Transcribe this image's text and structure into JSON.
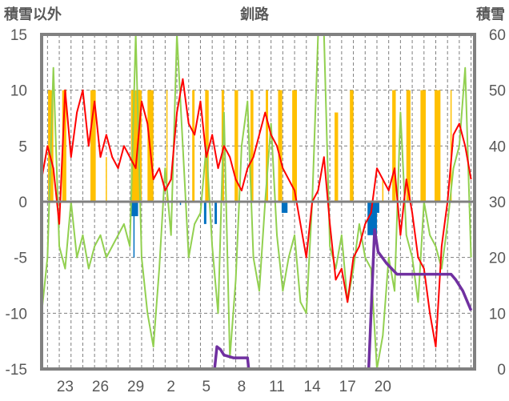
{
  "chart_data": {
    "type": "line",
    "title": "釧路",
    "ylabel_left": "積雪以外",
    "ylabel_right": "積雪",
    "ylim_left": [
      -15,
      15
    ],
    "ylim_right": [
      0,
      60
    ],
    "yticks_left": [
      "15",
      "10",
      "5",
      "0",
      "-5",
      "-10",
      "-15"
    ],
    "yticks_right": [
      "60",
      "50",
      "40",
      "30",
      "20",
      "10",
      "0"
    ],
    "xlim_days": [
      0,
      36.8
    ],
    "xticks": [
      {
        "t": 2,
        "label": "23"
      },
      {
        "t": 5,
        "label": "26"
      },
      {
        "t": 8,
        "label": "29"
      },
      {
        "t": 11,
        "label": "2"
      },
      {
        "t": 14,
        "label": "5"
      },
      {
        "t": 17,
        "label": "8"
      },
      {
        "t": 20,
        "label": "11"
      },
      {
        "t": 23,
        "label": "14"
      },
      {
        "t": 26,
        "label": "17"
      },
      {
        "t": 29,
        "label": "20"
      }
    ],
    "grid": true,
    "colors": {
      "red": "#ff0000",
      "green": "#92d050",
      "orange": "#ffc000",
      "blue": "#0070c0",
      "purple": "#7030a0",
      "frame": "#808080"
    },
    "series_red_step": 0.5,
    "series_red": [
      2,
      5,
      3,
      -2,
      10,
      4,
      8,
      10,
      5,
      9,
      4,
      6,
      4,
      3,
      5,
      4,
      3,
      9,
      7,
      2,
      3,
      1,
      2,
      8,
      11,
      7,
      6,
      9,
      4,
      6,
      3,
      5,
      4,
      2,
      1,
      3,
      4,
      6,
      8,
      6,
      5,
      3,
      2,
      1,
      -2,
      -5,
      0,
      1,
      4,
      -2,
      -7,
      -6,
      -9,
      -5,
      -4,
      -2,
      -1,
      3,
      2,
      1,
      3,
      -3,
      2,
      -1,
      -5,
      -6,
      -10,
      -13,
      -4,
      0,
      6,
      7,
      5,
      2
    ],
    "series_green_step": 0.5,
    "series_green": [
      -10,
      -5,
      12,
      -4,
      -6,
      0,
      -5,
      -3,
      -6,
      -4,
      -3,
      -5,
      -4,
      -3,
      -2,
      -4,
      15,
      -5,
      -10,
      -13,
      -6,
      3,
      -3,
      15,
      5,
      -5,
      -2,
      -1,
      5,
      -4,
      -10,
      8,
      -14,
      -7,
      5,
      9,
      -5,
      -8,
      0,
      7,
      -3,
      -8,
      -5,
      -3,
      -9,
      -10,
      0,
      15,
      15,
      -4,
      -6,
      -3,
      -9,
      -6,
      -2,
      -5,
      -6,
      -15,
      -12,
      -5,
      -8,
      8,
      -3,
      -5,
      -9,
      0,
      -3,
      -4,
      -6,
      -2,
      3,
      5,
      12,
      -5
    ],
    "bars_orange": [
      [
        0.55,
        1.0,
        10
      ],
      [
        1.75,
        2.1,
        10
      ],
      [
        4.15,
        4.6,
        10
      ],
      [
        5.45,
        5.55,
        4
      ],
      [
        7.6,
        8.5,
        10
      ],
      [
        9.0,
        9.5,
        10
      ],
      [
        10.6,
        10.7,
        10
      ],
      [
        12.8,
        13.0,
        10
      ],
      [
        13.9,
        14.2,
        10
      ],
      [
        15.3,
        15.5,
        10
      ],
      [
        16.4,
        16.7,
        10
      ],
      [
        17.75,
        18.0,
        10
      ],
      [
        19.05,
        19.25,
        10
      ],
      [
        20.1,
        20.4,
        10
      ],
      [
        20.2,
        20.45,
        10
      ],
      [
        21.3,
        21.7,
        10
      ],
      [
        24.9,
        25.2,
        8
      ],
      [
        26.2,
        26.5,
        10
      ],
      [
        28.95,
        29.05,
        2
      ],
      [
        29.8,
        30.1,
        10
      ],
      [
        31.0,
        31.35,
        10
      ],
      [
        32.2,
        32.65,
        10
      ],
      [
        33.4,
        33.9,
        10
      ],
      [
        34.75,
        34.85,
        10
      ]
    ],
    "bars_blue": [
      [
        7.6,
        8.2,
        -1.3
      ],
      [
        7.8,
        7.9,
        -5
      ],
      [
        11.75,
        11.85,
        -0.3
      ],
      [
        13.8,
        14.0,
        -2
      ],
      [
        14.7,
        14.9,
        -2
      ],
      [
        20.4,
        20.9,
        -1
      ],
      [
        27.7,
        28.5,
        -3
      ],
      [
        28.5,
        28.7,
        -1
      ],
      [
        36.3,
        36.4,
        -0.5
      ]
    ],
    "series_purple": [
      [
        0,
        0
      ],
      [
        14.7,
        0
      ],
      [
        14.9,
        4
      ],
      [
        15.2,
        3.5
      ],
      [
        15.5,
        2.5
      ],
      [
        16.3,
        2
      ],
      [
        17.5,
        2
      ],
      [
        17.6,
        0
      ],
      [
        27.8,
        0
      ],
      [
        28.3,
        25
      ],
      [
        28.6,
        21
      ],
      [
        29.3,
        19
      ],
      [
        30.2,
        17
      ],
      [
        34.8,
        17
      ],
      [
        35.2,
        16
      ],
      [
        35.8,
        14
      ],
      [
        36.5,
        10.5
      ]
    ]
  }
}
